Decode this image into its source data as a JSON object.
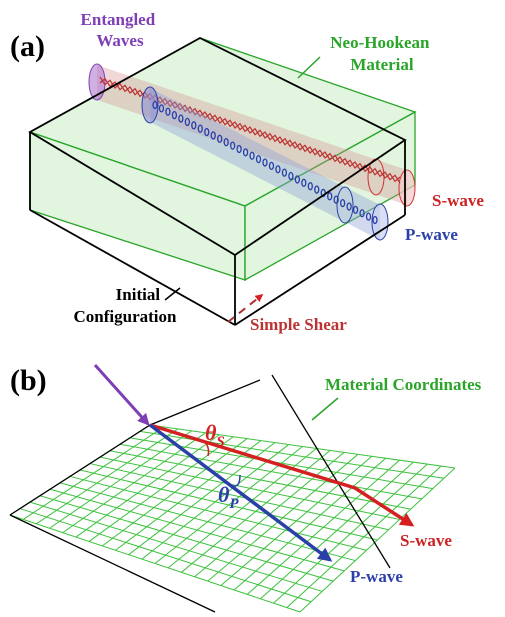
{
  "panel_a": {
    "label": "(a)",
    "entangled_waves": [
      "Entangled",
      "Waves"
    ],
    "material": [
      "Neo-Hookean",
      "Material"
    ],
    "s_wave": "S-wave",
    "p_wave": "P-wave",
    "initial_configuration": [
      "Initial",
      "Configuration"
    ],
    "simple_shear": "Simple Shear"
  },
  "panel_b": {
    "label": "(b)",
    "material_coordinates": "Material Coordinates",
    "theta_s": {
      "symbol": "θ",
      "subscript": "S"
    },
    "theta_p": {
      "symbol": "θ",
      "subscript": "P"
    },
    "s_wave": "S-wave",
    "p_wave": "P-wave"
  }
}
